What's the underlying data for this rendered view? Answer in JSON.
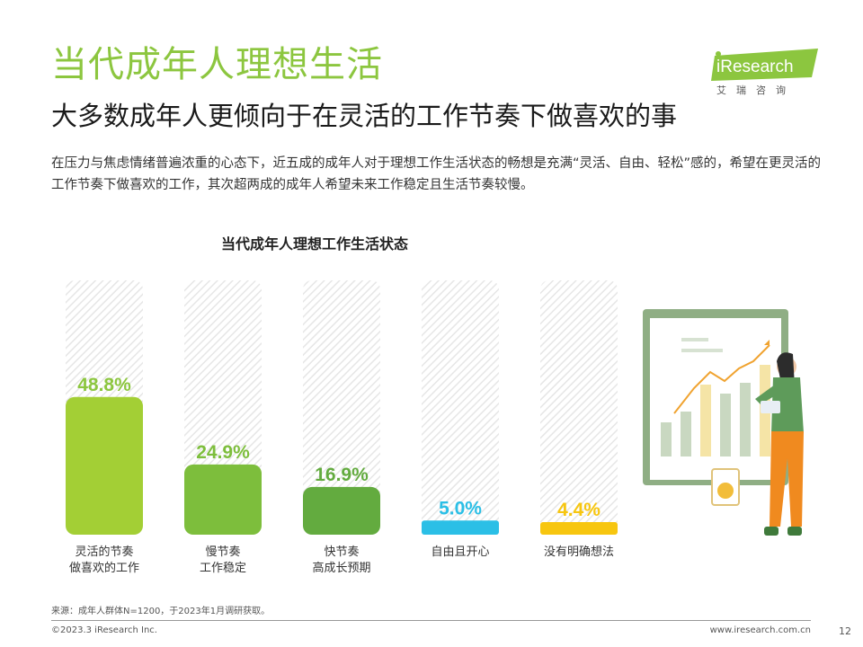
{
  "header": {
    "title": "当代成年人理想生活",
    "subtitle": "大多数成年人更倾向于在灵活的工作节奏下做喜欢的事",
    "description": "在压力与焦虑情绪普遍浓重的心态下，近五成的成年人对于理想工作生活状态的畅想是充满“灵活、自由、轻松”感的，希望在更灵活的工作节奏下做喜欢的工作，其次超两成的成年人希望未来工作稳定且生活节奏较慢。"
  },
  "logo": {
    "brand": "iResearch",
    "cn": "艾瑞咨询",
    "color": "#8cc63f"
  },
  "chart_data": {
    "type": "bar",
    "title": "当代成年人理想工作生活状态",
    "categories": [
      [
        "灵活的节奏",
        "做喜欢的工作"
      ],
      [
        "慢节奏",
        "工作稳定"
      ],
      [
        "快节奏",
        "高成长预期"
      ],
      [
        "自由且开心"
      ],
      [
        "没有明确想法"
      ]
    ],
    "values": [
      48.8,
      24.9,
      16.9,
      5.0,
      4.4
    ],
    "value_labels": [
      "48.8%",
      "24.9%",
      "16.9%",
      "5.0%",
      "4.4%"
    ],
    "colors": [
      "#a3cf35",
      "#7dbe3c",
      "#63ab3f",
      "#2bbfe6",
      "#f7c610"
    ],
    "label_colors": [
      "#8cc63f",
      "#7dbe3c",
      "#63ab3f",
      "#2bbfe6",
      "#f7c610"
    ],
    "ylim": [
      0,
      100
    ],
    "unit": "%",
    "grid": false,
    "legend": "none"
  },
  "footer": {
    "source": "来源：成年人群体N=1200，于2023年1月调研获取。",
    "copyright": "©2023.3 iResearch Inc.",
    "site": "www.iresearch.com.cn",
    "page": "12"
  }
}
